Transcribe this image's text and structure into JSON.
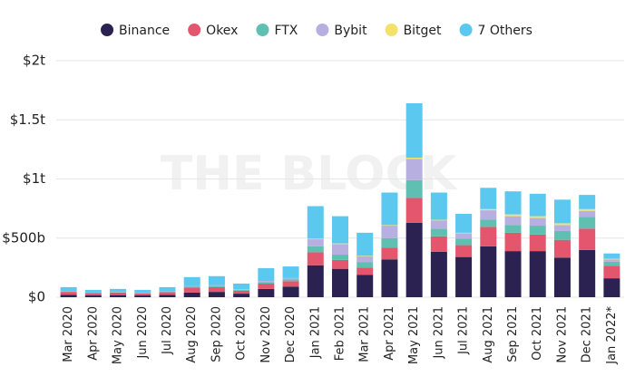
{
  "chart_data": {
    "type": "stacked_bar",
    "watermark": "THE BLOCK",
    "categories": [
      "Mar 2020",
      "Apr 2020",
      "May 2020",
      "Jun 2020",
      "Jul 2020",
      "Aug 2020",
      "Sep 2020",
      "Oct 2020",
      "Nov 2020",
      "Dec 2020",
      "Jan 2021",
      "Feb 2021",
      "Mar 2021",
      "Apr 2021",
      "May 2021",
      "Jun 2021",
      "Jul 2021",
      "Aug 2021",
      "Sep 2021",
      "Oct 2021",
      "Nov 2021",
      "Dec 2021",
      "Jan 2022*"
    ],
    "series": [
      {
        "name": "Binance",
        "color": "#2b2252",
        "values": [
          20,
          15,
          18,
          15,
          20,
          40,
          45,
          30,
          70,
          90,
          270,
          240,
          190,
          320,
          630,
          385,
          340,
          430,
          390,
          390,
          335,
          400,
          160
        ]
      },
      {
        "name": "Okex",
        "color": "#e4566e",
        "values": [
          25,
          20,
          22,
          18,
          22,
          40,
          40,
          25,
          45,
          45,
          110,
          75,
          60,
          100,
          210,
          130,
          100,
          165,
          155,
          140,
          150,
          180,
          105
        ]
      },
      {
        "name": "FTX",
        "color": "#5fbfb0",
        "values": [
          3,
          2,
          3,
          2,
          3,
          8,
          10,
          7,
          12,
          15,
          50,
          45,
          45,
          80,
          150,
          65,
          55,
          60,
          65,
          75,
          75,
          100,
          35
        ]
      },
      {
        "name": "Bybit",
        "color": "#b7afe0",
        "values": [
          2,
          2,
          2,
          2,
          3,
          7,
          8,
          5,
          10,
          12,
          60,
          90,
          50,
          105,
          180,
          70,
          45,
          80,
          75,
          65,
          50,
          50,
          20
        ]
      },
      {
        "name": "Bitget",
        "color": "#f5e16a",
        "values": [
          0,
          0,
          0,
          0,
          0,
          0,
          0,
          0,
          0,
          0,
          5,
          5,
          5,
          5,
          10,
          5,
          5,
          10,
          15,
          15,
          15,
          15,
          5
        ]
      },
      {
        "name": "7 Others",
        "color": "#5ac8ef",
        "values": [
          35,
          23,
          25,
          25,
          37,
          75,
          75,
          48,
          108,
          98,
          275,
          230,
          195,
          275,
          460,
          230,
          160,
          180,
          195,
          190,
          200,
          120,
          45
        ]
      }
    ],
    "ylim": [
      0,
      2000
    ],
    "yticks": [
      {
        "value": 0,
        "label": "$0"
      },
      {
        "value": 500,
        "label": "$500b"
      },
      {
        "value": 1000,
        "label": "$1t"
      },
      {
        "value": 1500,
        "label": "$1.5t"
      },
      {
        "value": 2000,
        "label": "$2t"
      }
    ],
    "grid": true,
    "legend": "top"
  }
}
